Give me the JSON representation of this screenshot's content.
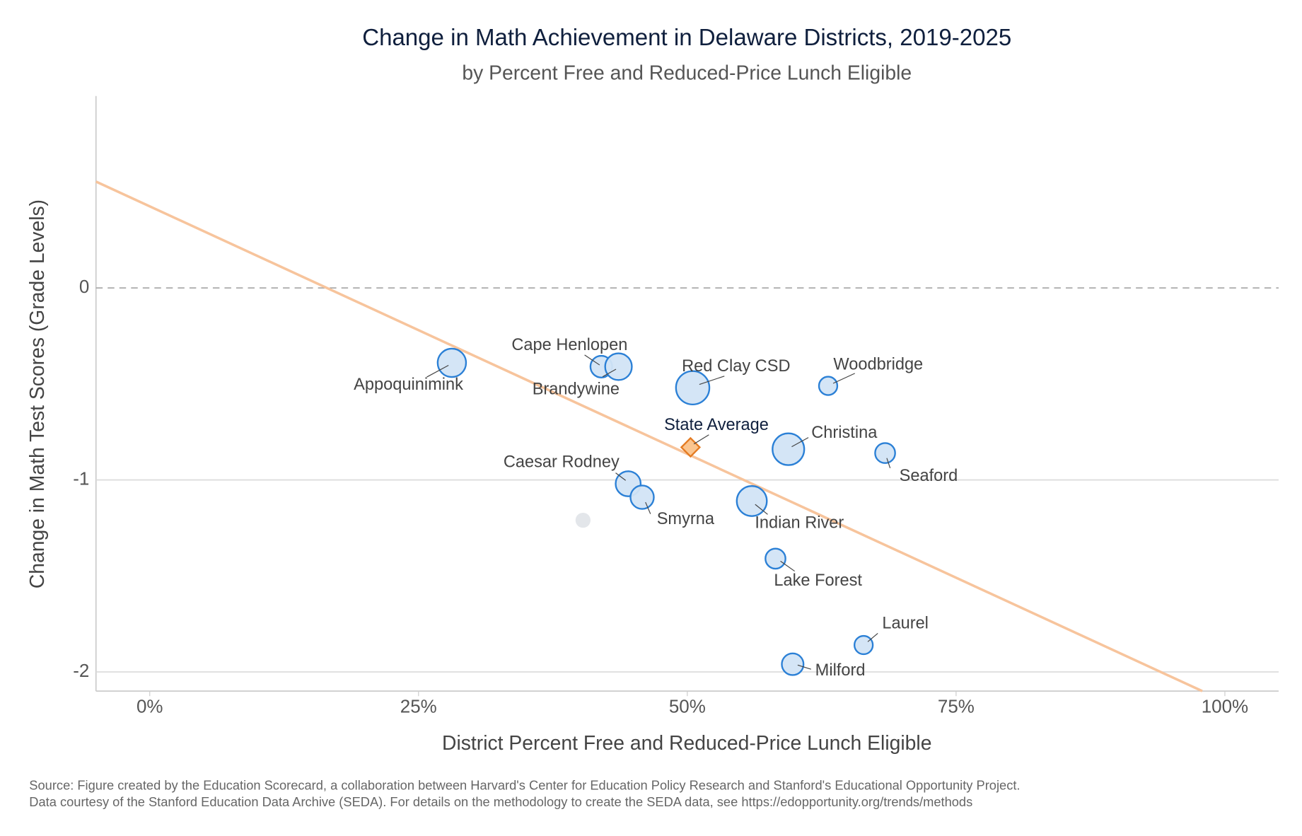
{
  "chart_data": {
    "type": "scatter",
    "title": "Change in Math Achievement in Delaware Districts, 2019-2025",
    "subtitle": "by Percent Free and Reduced-Price Lunch Eligible",
    "x_label": "District Percent Free and Reduced-Price Lunch Eligible",
    "y_label": "Change in Math Test Scores (Grade Levels)",
    "xlim": [
      -5,
      105
    ],
    "ylim": [
      -2.1,
      1.0
    ],
    "xticks": [
      {
        "value": 0,
        "label": "0%"
      },
      {
        "value": 25,
        "label": "25%"
      },
      {
        "value": 50,
        "label": "50%"
      },
      {
        "value": 75,
        "label": "75%"
      },
      {
        "value": 100,
        "label": "100%"
      }
    ],
    "yticks": [
      0,
      -1,
      -2
    ],
    "grid": true,
    "color": "#d2e4f6",
    "edge_color": "#2b80d6",
    "points": [
      {
        "label": "Appoquinimink",
        "x": 28.1,
        "y": -0.39,
        "size": 17
      },
      {
        "label": "Cape Henlopen",
        "x": 42.0,
        "y": -0.41,
        "size": 13
      },
      {
        "label": "Brandywine",
        "x": 43.6,
        "y": -0.41,
        "size": 16
      },
      {
        "label": "Red Clay CSD",
        "x": 50.5,
        "y": -0.52,
        "size": 20
      },
      {
        "label": "Woodbridge",
        "x": 63.1,
        "y": -0.51,
        "size": 11
      },
      {
        "label": "Christina",
        "x": 59.4,
        "y": -0.84,
        "size": 19
      },
      {
        "label": "Seaford",
        "x": 68.4,
        "y": -0.86,
        "size": 12
      },
      {
        "label": "Caesar Rodney",
        "x": 44.5,
        "y": -1.02,
        "size": 15
      },
      {
        "label": "Smyrna",
        "x": 45.8,
        "y": -1.09,
        "size": 14
      },
      {
        "label": "Indian River",
        "x": 56.0,
        "y": -1.11,
        "size": 18
      },
      {
        "label": "Lake Forest",
        "x": 58.2,
        "y": -1.41,
        "size": 12
      },
      {
        "label": "Laurel",
        "x": 66.4,
        "y": -1.86,
        "size": 11
      },
      {
        "label": "Milford",
        "x": 59.8,
        "y": -1.96,
        "size": 13
      }
    ],
    "unlabeled_points": [
      {
        "x": 40.3,
        "y": -1.21,
        "size": 9
      }
    ],
    "unlabeled_color": "#e3e6ea",
    "state_average": {
      "label": "State Average",
      "x": 50.3,
      "y": -0.83,
      "color": "#fbc58f",
      "edge_color": "#e47b22"
    },
    "trendline": {
      "x": [
        -5,
        97.9
      ],
      "y": [
        0.554,
        -2.1
      ],
      "color": "#f7c49c"
    },
    "source": [
      "Source: Figure created by the Education Scorecard, a collaboration between Harvard's Center for Education Policy Research and Stanford's Educational Opportunity Project.",
      "Data courtesy of the Stanford Education Data Archive (SEDA). For details on the methodology to create the SEDA data, see https://edopportunity.org/trends/methods"
    ]
  }
}
